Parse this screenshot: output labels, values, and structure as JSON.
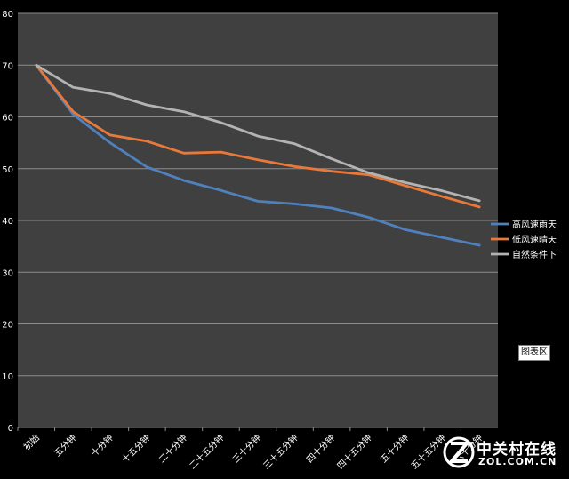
{
  "chart_data": {
    "type": "line",
    "categories": [
      "初始",
      "五分钟",
      "十分钟",
      "十五分钟",
      "二十分钟",
      "二十五分钟",
      "三十分钟",
      "三十五分钟",
      "四十分钟",
      "四十五分钟",
      "五十分钟",
      "五十五分钟",
      "六十分钟"
    ],
    "series": [
      {
        "name": "高风速雨天",
        "color": "#4f81bd",
        "values": [
          70,
          60.5,
          55,
          50.3,
          47.7,
          45.8,
          43.7,
          43.2,
          42.4,
          40.6,
          38.2,
          36.7,
          35.2
        ]
      },
      {
        "name": "低风速晴天",
        "color": "#e9793a",
        "values": [
          70,
          61,
          56.5,
          55.3,
          53,
          53.2,
          51.7,
          50.4,
          49.5,
          48.8,
          46.7,
          44.6,
          42.6
        ]
      },
      {
        "name": "自然条件下",
        "color": "#b3b3b3",
        "values": [
          70,
          65.7,
          64.5,
          62.3,
          61,
          58.9,
          56.3,
          54.8,
          51.9,
          49.2,
          47.3,
          45.7,
          43.8
        ]
      }
    ],
    "ylim": [
      0,
      80
    ],
    "yticks": [
      0,
      10,
      20,
      30,
      40,
      50,
      60,
      70,
      80
    ],
    "grid": true,
    "legend": "right"
  },
  "plot_area_label": "图表区",
  "watermark": {
    "text_cn": "中关村在线",
    "text_en": "ZOL.COM.CN"
  }
}
